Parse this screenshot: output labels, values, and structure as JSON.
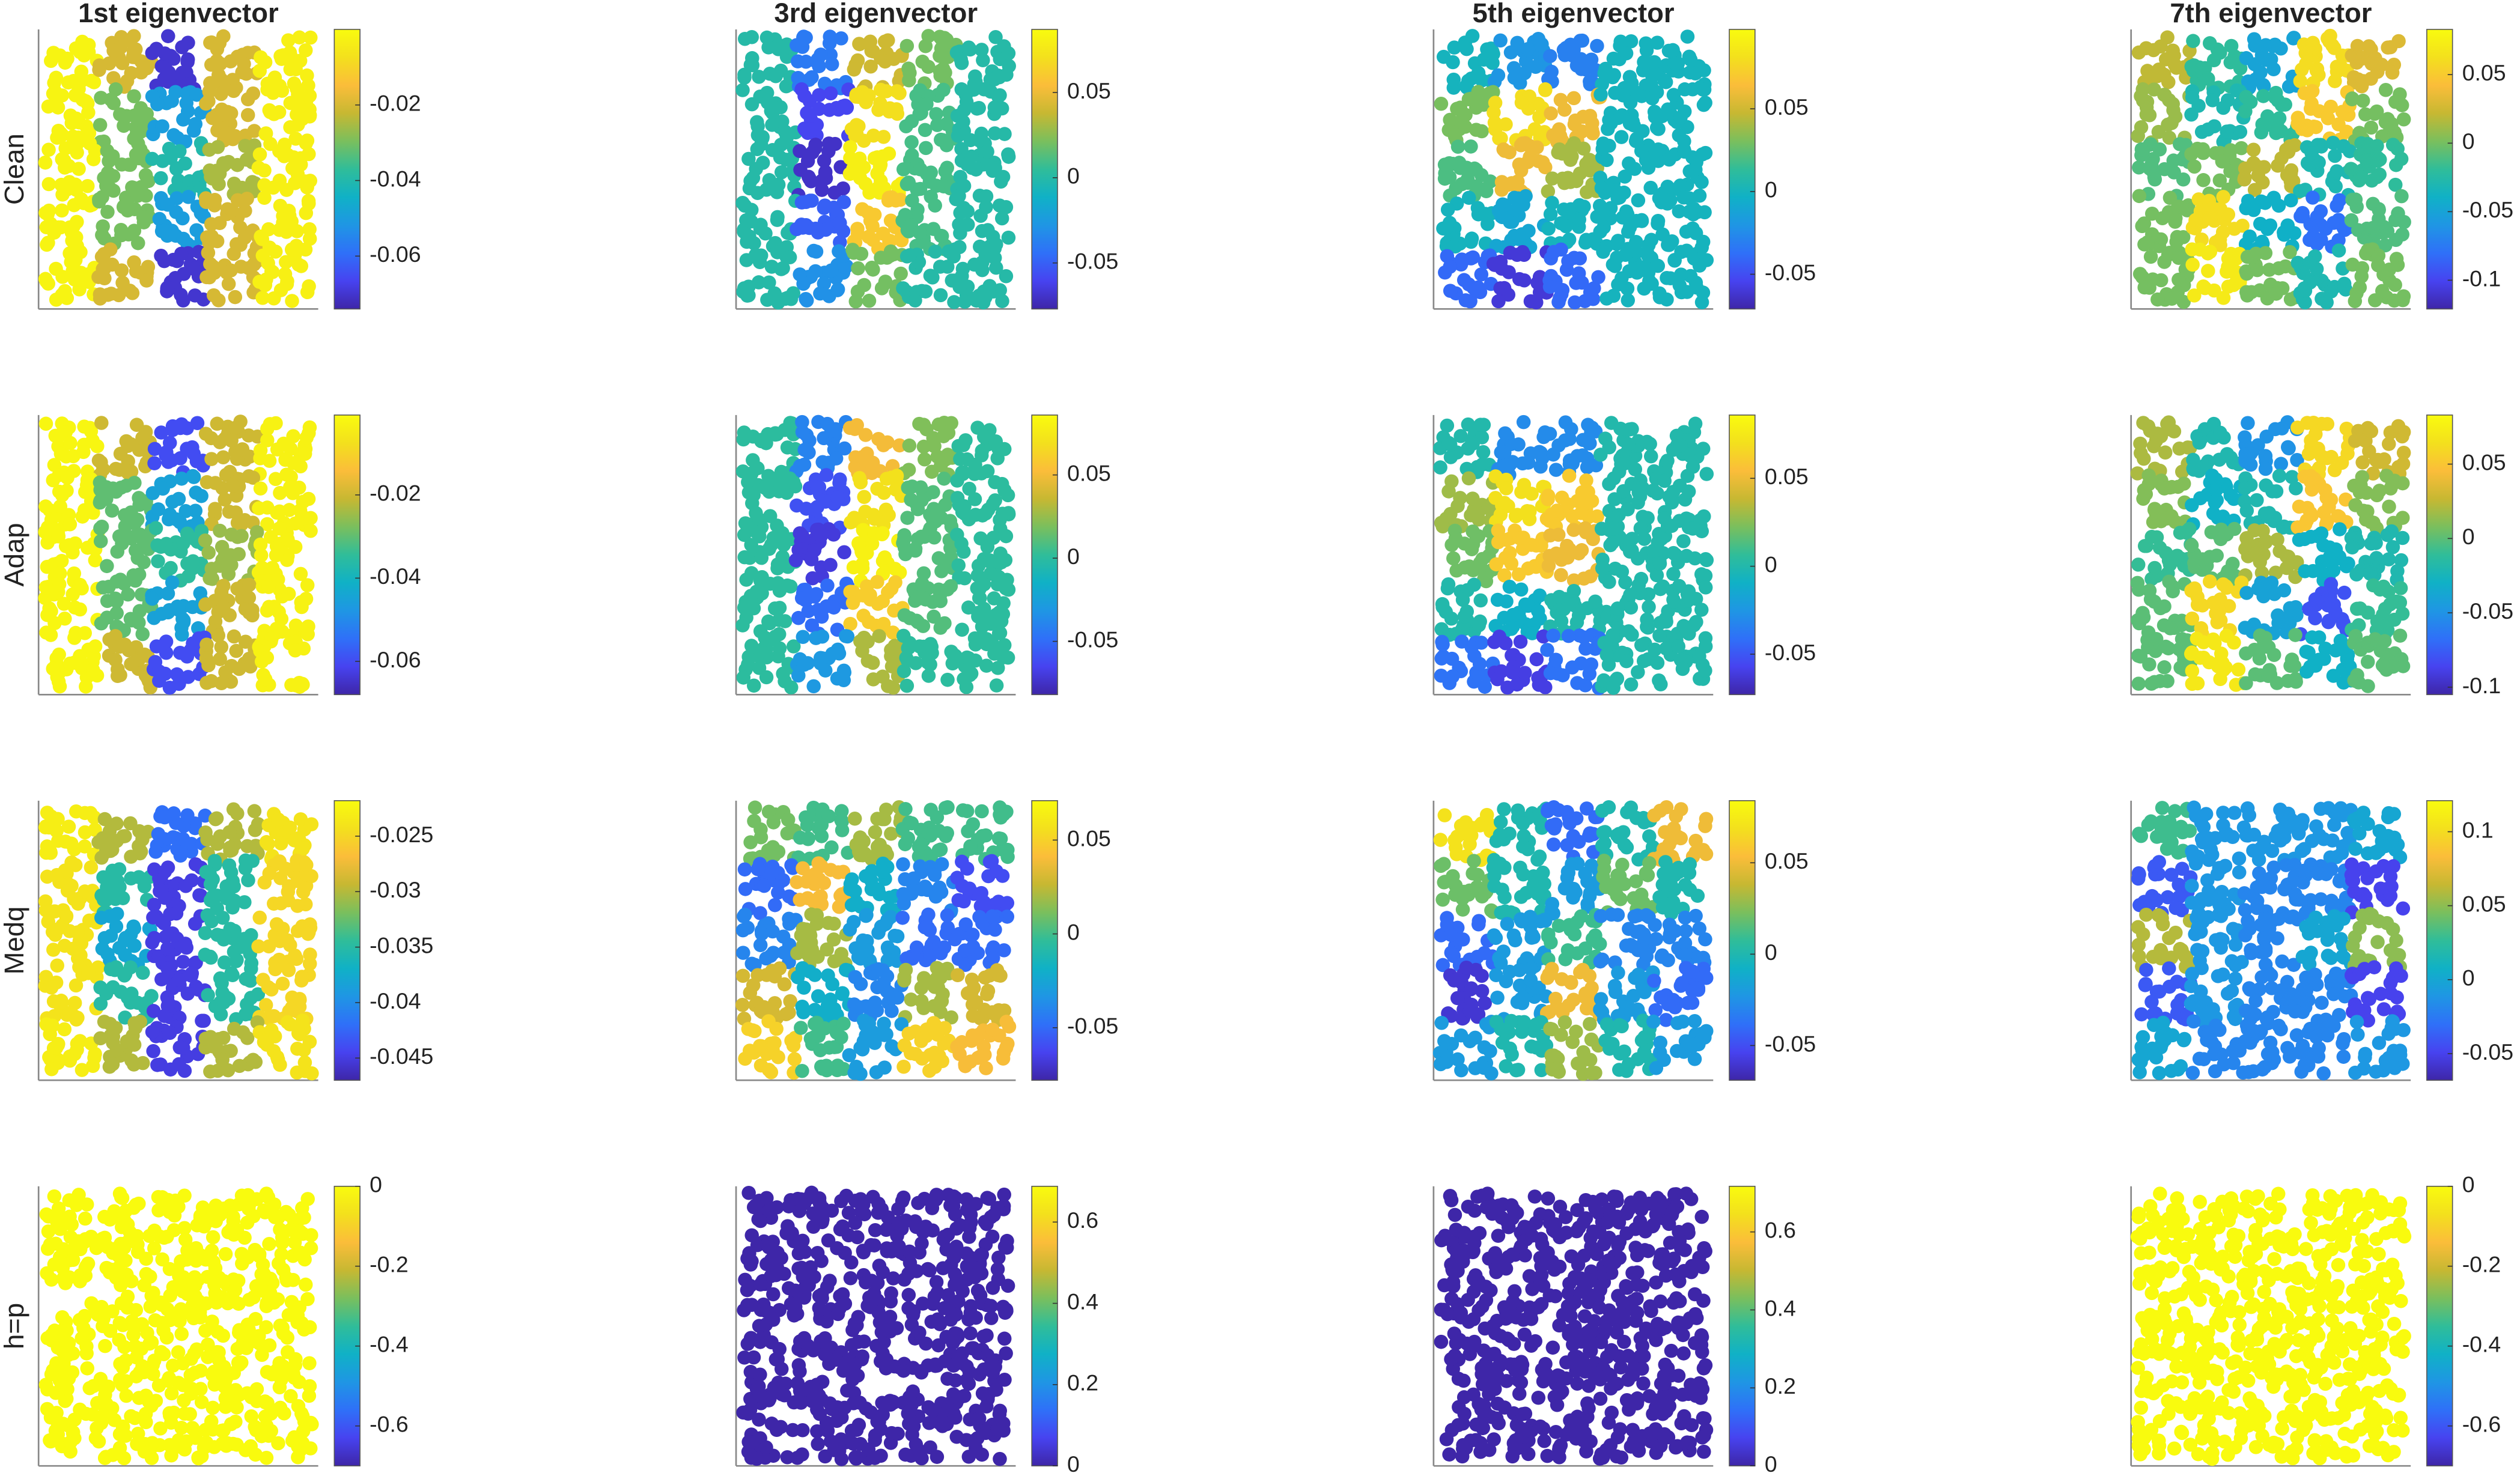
{
  "colormap": [
    "#3e26a8",
    "#4743f0",
    "#2f70f8",
    "#1f96e4",
    "#10b1c6",
    "#30bd99",
    "#7abf5d",
    "#c7b832",
    "#fbbd3a",
    "#f3e01d",
    "#f9fb0e"
  ],
  "chart_data": [
    {
      "type": "scatter",
      "title": "1st eigenvector",
      "ylabel": "Clean",
      "clim": [
        -0.074,
        0.0
      ],
      "cticks": [
        -0.02,
        -0.04,
        -0.06
      ],
      "values": [
        [
          -0.002,
          -0.02,
          -0.07,
          -0.02,
          -0.003
        ],
        [
          -0.002,
          -0.03,
          -0.05,
          -0.02,
          -0.003
        ],
        [
          -0.002,
          -0.03,
          -0.04,
          -0.025,
          -0.003
        ],
        [
          -0.002,
          -0.03,
          -0.05,
          -0.02,
          -0.003
        ],
        [
          -0.002,
          -0.02,
          -0.07,
          -0.02,
          -0.003
        ]
      ]
    },
    {
      "type": "scatter",
      "title": "3rd eigenvector",
      "clim": [
        -0.077,
        0.087
      ],
      "cticks": [
        0.05,
        0,
        -0.05
      ],
      "values": [
        [
          0.0,
          -0.04,
          0.04,
          0.02,
          0.0
        ],
        [
          0.0,
          -0.06,
          0.07,
          0.01,
          0.0
        ],
        [
          0.0,
          -0.07,
          0.08,
          0.01,
          0.0
        ],
        [
          0.0,
          -0.05,
          0.06,
          0.01,
          0.0
        ],
        [
          0.0,
          -0.03,
          0.02,
          0.0,
          0.0
        ]
      ]
    },
    {
      "type": "scatter",
      "title": "5th eigenvector",
      "clim": [
        -0.071,
        0.098
      ],
      "cticks": [
        0.05,
        0,
        -0.05
      ],
      "values": [
        [
          0.0,
          -0.02,
          -0.03,
          0.0,
          0.0
        ],
        [
          0.03,
          0.08,
          0.06,
          0.0,
          0.0
        ],
        [
          0.02,
          0.06,
          0.04,
          0.0,
          0.0
        ],
        [
          0.0,
          -0.01,
          0.0,
          0.0,
          0.0
        ],
        [
          -0.04,
          -0.06,
          -0.04,
          0.0,
          0.0
        ]
      ]
    },
    {
      "type": "scatter",
      "title": "7th eigenvector",
      "clim": [
        -0.121,
        0.083
      ],
      "cticks": [
        0.05,
        0,
        -0.05,
        -0.1
      ],
      "values": [
        [
          0.02,
          -0.02,
          -0.05,
          0.06,
          0.03
        ],
        [
          0.01,
          -0.03,
          -0.02,
          0.05,
          0.0
        ],
        [
          -0.01,
          0.0,
          0.02,
          -0.03,
          -0.02
        ],
        [
          0.0,
          0.06,
          -0.04,
          -0.08,
          -0.01
        ],
        [
          0.0,
          0.07,
          0.0,
          -0.03,
          0.0
        ]
      ]
    },
    {
      "type": "scatter",
      "ylabel": "Adap",
      "clim": [
        -0.068,
        -0.0008
      ],
      "cticks": [
        -0.02,
        -0.04,
        -0.06
      ],
      "values": [
        [
          -0.002,
          -0.02,
          -0.06,
          -0.02,
          -0.003
        ],
        [
          -0.002,
          -0.03,
          -0.045,
          -0.02,
          -0.003
        ],
        [
          -0.002,
          -0.03,
          -0.035,
          -0.025,
          -0.003
        ],
        [
          -0.002,
          -0.03,
          -0.045,
          -0.02,
          -0.003
        ],
        [
          -0.002,
          -0.02,
          -0.06,
          -0.02,
          -0.003
        ]
      ]
    },
    {
      "type": "scatter",
      "clim": [
        -0.082,
        0.086
      ],
      "cticks": [
        0.05,
        0,
        -0.05
      ],
      "values": [
        [
          0.0,
          -0.04,
          0.05,
          0.02,
          0.0
        ],
        [
          0.0,
          -0.06,
          0.07,
          0.01,
          0.0
        ],
        [
          0.0,
          -0.07,
          0.08,
          0.01,
          0.0
        ],
        [
          0.0,
          -0.05,
          0.06,
          0.01,
          0.0
        ],
        [
          0.0,
          -0.03,
          0.03,
          0.0,
          0.0
        ]
      ]
    },
    {
      "type": "scatter",
      "clim": [
        -0.073,
        0.086
      ],
      "cticks": [
        0.05,
        0,
        -0.05
      ],
      "values": [
        [
          0.0,
          -0.03,
          -0.03,
          0.0,
          0.0
        ],
        [
          0.03,
          0.07,
          0.06,
          0.0,
          0.0
        ],
        [
          0.02,
          0.06,
          0.05,
          0.0,
          0.0
        ],
        [
          0.0,
          -0.01,
          0.0,
          0.0,
          0.0
        ],
        [
          -0.04,
          -0.06,
          -0.04,
          0.0,
          0.0
        ]
      ]
    },
    {
      "type": "scatter",
      "clim": [
        -0.105,
        0.083
      ],
      "cticks": [
        0.05,
        0,
        -0.05,
        -0.1
      ],
      "values": [
        [
          0.02,
          -0.02,
          -0.05,
          0.06,
          0.03
        ],
        [
          0.01,
          -0.03,
          -0.02,
          0.05,
          0.01
        ],
        [
          -0.01,
          0.0,
          0.02,
          -0.03,
          -0.02
        ],
        [
          0.0,
          0.06,
          -0.04,
          -0.08,
          -0.01
        ],
        [
          0.0,
          0.07,
          0.0,
          -0.03,
          0.0
        ]
      ]
    },
    {
      "type": "scatter",
      "ylabel": "Medq",
      "clim": [
        -0.047,
        -0.0218
      ],
      "cticks": [
        -0.025,
        -0.03,
        -0.035,
        -0.04,
        -0.045
      ],
      "values": [
        [
          -0.023,
          -0.03,
          -0.042,
          -0.03,
          -0.024
        ],
        [
          -0.024,
          -0.035,
          -0.045,
          -0.035,
          -0.025
        ],
        [
          -0.024,
          -0.038,
          -0.045,
          -0.035,
          -0.025
        ],
        [
          -0.024,
          -0.035,
          -0.045,
          -0.035,
          -0.025
        ],
        [
          -0.023,
          -0.03,
          -0.045,
          -0.03,
          -0.024
        ]
      ]
    },
    {
      "type": "scatter",
      "clim": [
        -0.078,
        0.071
      ],
      "cticks": [
        0.05,
        0,
        -0.05
      ],
      "values": [
        [
          0.01,
          0.0,
          0.02,
          0.0,
          0.0
        ],
        [
          -0.05,
          0.04,
          -0.02,
          -0.04,
          -0.06
        ],
        [
          -0.04,
          0.02,
          -0.03,
          -0.05,
          -0.05
        ],
        [
          0.03,
          -0.02,
          -0.04,
          0.02,
          0.03
        ],
        [
          0.05,
          0.0,
          -0.03,
          0.05,
          0.04
        ]
      ]
    },
    {
      "type": "scatter",
      "clim": [
        -0.069,
        0.084
      ],
      "cticks": [
        0.05,
        0,
        -0.05
      ],
      "values": [
        [
          0.07,
          0.0,
          -0.04,
          0.0,
          0.05
        ],
        [
          0.02,
          0.0,
          -0.02,
          0.02,
          0.0
        ],
        [
          -0.04,
          -0.02,
          0.01,
          -0.03,
          -0.03
        ],
        [
          -0.06,
          -0.02,
          0.05,
          -0.02,
          -0.04
        ],
        [
          -0.02,
          0.0,
          0.03,
          0.0,
          -0.02
        ]
      ]
    },
    {
      "type": "scatter",
      "clim": [
        -0.068,
        0.121
      ],
      "cticks": [
        0.1,
        0.05,
        0,
        -0.05
      ],
      "values": [
        [
          0.03,
          -0.01,
          -0.01,
          -0.01,
          0.0
        ],
        [
          -0.04,
          -0.01,
          -0.02,
          -0.02,
          -0.05
        ],
        [
          0.06,
          -0.01,
          -0.02,
          0.0,
          0.05
        ],
        [
          -0.04,
          -0.01,
          -0.02,
          -0.02,
          -0.05
        ],
        [
          0.0,
          -0.02,
          -0.02,
          -0.02,
          -0.01
        ]
      ]
    },
    {
      "type": "scatter",
      "ylabel": "h=p",
      "clim": [
        -0.7,
        0
      ],
      "cticks": [
        0,
        -0.2,
        -0.4,
        -0.6
      ],
      "values": [
        [
          0,
          0,
          0,
          0,
          0
        ],
        [
          0,
          0,
          0,
          0,
          0
        ],
        [
          0,
          0,
          0,
          0,
          0
        ],
        [
          0,
          0,
          0,
          0,
          0
        ],
        [
          0,
          0,
          0,
          0,
          0
        ]
      ]
    },
    {
      "type": "scatter",
      "clim": [
        0,
        0.688
      ],
      "cticks": [
        0.6,
        0.4,
        0.2,
        0
      ],
      "values": [
        [
          0,
          0,
          0,
          0,
          0
        ],
        [
          0,
          0,
          0,
          0,
          0
        ],
        [
          0,
          0,
          0,
          0,
          0
        ],
        [
          0,
          0,
          0,
          0,
          0
        ],
        [
          0,
          0,
          0,
          0,
          0
        ]
      ]
    },
    {
      "type": "scatter",
      "clim": [
        0,
        0.717
      ],
      "cticks": [
        0.6,
        0.4,
        0.2,
        0
      ],
      "values": [
        [
          0,
          0,
          0,
          0,
          0
        ],
        [
          0,
          0,
          0,
          0,
          0
        ],
        [
          0,
          0,
          0,
          0,
          0
        ],
        [
          0,
          0,
          0,
          0,
          0
        ],
        [
          0,
          0,
          0,
          0,
          0
        ]
      ]
    },
    {
      "type": "scatter",
      "clim": [
        -0.7,
        0
      ],
      "cticks": [
        0,
        -0.2,
        -0.4,
        -0.6
      ],
      "values": [
        [
          0,
          0,
          0,
          0,
          0
        ],
        [
          0,
          0,
          0,
          0,
          0
        ],
        [
          0,
          0,
          0,
          0,
          0
        ],
        [
          0,
          0,
          0,
          0,
          0
        ],
        [
          0,
          0,
          0,
          0,
          0
        ]
      ]
    }
  ]
}
